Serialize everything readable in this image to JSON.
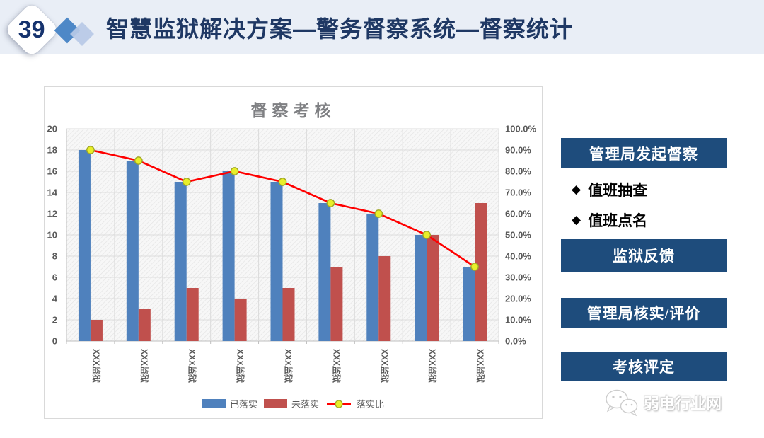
{
  "header": {
    "slide_number": "39",
    "title": "智慧监狱解决方案—警务督察系统—督察统计"
  },
  "chart_data": {
    "type": "combo-bar-line",
    "title": "督察考核",
    "categories": [
      "XXX监狱",
      "XXX监狱",
      "XXX监狱",
      "XXX监狱",
      "XXX监狱",
      "XXX监狱",
      "XXX监狱",
      "XXX监狱",
      "XXX监狱"
    ],
    "series": [
      {
        "name": "已落实",
        "type": "bar",
        "axis": "left",
        "color": "#4f81bd",
        "values": [
          18,
          17,
          15,
          16,
          15,
          13,
          12,
          10,
          7
        ]
      },
      {
        "name": "未落实",
        "type": "bar",
        "axis": "left",
        "color": "#c0504d",
        "values": [
          2,
          3,
          5,
          4,
          5,
          7,
          8,
          10,
          13
        ]
      },
      {
        "name": "落实比",
        "type": "line",
        "axis": "right",
        "color": "#ff0000",
        "marker_fill": "#e8ef29",
        "marker_stroke": "#a0a726",
        "values_pct": [
          90,
          85,
          75,
          80,
          75,
          65,
          60,
          50,
          35
        ]
      }
    ],
    "left_axis": {
      "min": 0,
      "max": 20,
      "step": 2,
      "ticks": [
        "0",
        "2",
        "4",
        "6",
        "8",
        "10",
        "12",
        "14",
        "16",
        "18",
        "20"
      ]
    },
    "right_axis": {
      "min": 0,
      "max": 100,
      "step": 10,
      "ticks": [
        "0.0%",
        "10.0%",
        "20.0%",
        "30.0%",
        "40.0%",
        "50.0%",
        "60.0%",
        "70.0%",
        "80.0%",
        "90.0%",
        "100.0%"
      ]
    },
    "grid": true,
    "legend_position": "bottom"
  },
  "sidebar": {
    "bullet_marker": "◆",
    "buttons": [
      "管理局发起督察",
      "监狱反馈",
      "管理局核实/评价",
      "考核评定"
    ],
    "bullets": [
      "值班抽查",
      "值班点名"
    ]
  },
  "watermark": {
    "text": "弱电行业网",
    "icon": "wechat-icon"
  }
}
